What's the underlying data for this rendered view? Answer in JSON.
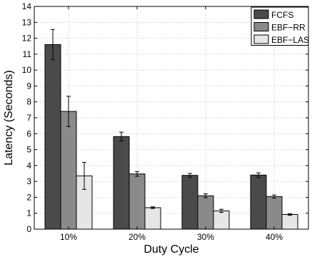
{
  "chart_data": {
    "type": "bar",
    "title": "",
    "xlabel": "Duty Cycle",
    "ylabel": "Latency (Seconds)",
    "categories": [
      "10%",
      "20%",
      "30%",
      "40%"
    ],
    "ylim": [
      0,
      14
    ],
    "yticks": [
      0,
      1,
      2,
      3,
      4,
      5,
      6,
      7,
      8,
      9,
      10,
      11,
      12,
      13,
      14
    ],
    "grid": true,
    "legend_position": "top-right",
    "series": [
      {
        "name": "FCFS",
        "color": "#4a4a4a",
        "values": [
          11.6,
          5.82,
          3.38,
          3.4
        ],
        "errors": [
          0.95,
          0.28,
          0.12,
          0.14
        ]
      },
      {
        "name": "EBF−RR",
        "color": "#8a8a8a",
        "values": [
          7.4,
          3.47,
          2.1,
          2.05
        ],
        "errors": [
          0.95,
          0.15,
          0.12,
          0.1
        ]
      },
      {
        "name": "EBF−LAS",
        "color": "#e6e6e6",
        "values": [
          3.35,
          1.35,
          1.15,
          0.92
        ],
        "errors": [
          0.85,
          0.05,
          0.1,
          0.05
        ]
      }
    ]
  }
}
